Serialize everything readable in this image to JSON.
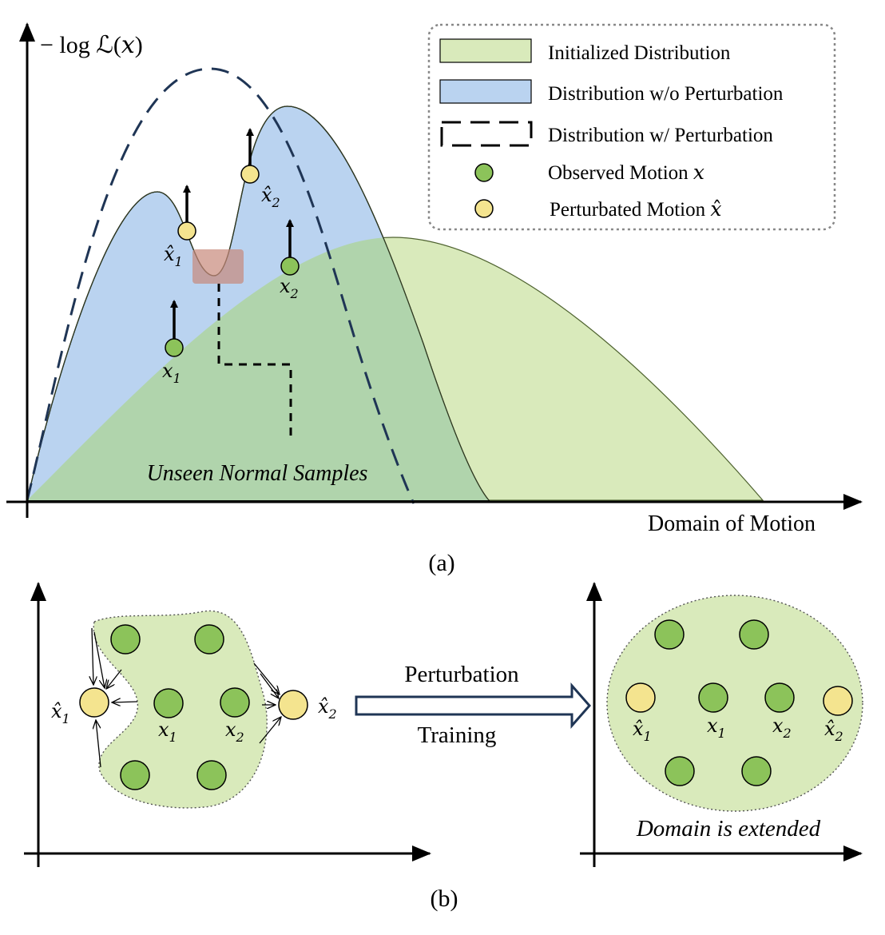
{
  "panel_a": {
    "y_axis_label": "− log ℒ(𝑥)",
    "x_axis_label": "Domain of Motion",
    "caption": "(a)",
    "region_label": "Unseen Normal Samples",
    "points": {
      "x1": "𝑥",
      "x1_sub": "1",
      "x2": "𝑥",
      "x2_sub": "2",
      "xh1": "𝑥̂",
      "xh1_sub": "1",
      "xh2": "𝑥̂",
      "xh2_sub": "2"
    },
    "legend": {
      "items": [
        {
          "label": "Initialized Distribution"
        },
        {
          "label": "Distribution w/o Perturbation"
        },
        {
          "label": "Distribution w/ Perturbation"
        },
        {
          "label": "Observed Motion 𝑥"
        },
        {
          "label": "Perturbated Motion 𝑥̂"
        }
      ]
    }
  },
  "panel_b": {
    "caption": "(b)",
    "arrow_top_label": "Perturbation",
    "arrow_bottom_label": "Training",
    "right_label": "Domain is extended",
    "left_points": {
      "xh1": "𝑥̂",
      "xh1_sub": "1",
      "xh2": "𝑥̂",
      "xh2_sub": "2",
      "x1": "𝑥",
      "x1_sub": "1",
      "x2": "𝑥",
      "x2_sub": "2"
    },
    "right_points": {
      "xh1": "𝑥̂",
      "xh1_sub": "1",
      "x1": "𝑥",
      "x1_sub": "1",
      "x2": "𝑥",
      "x2_sub": "2",
      "xh2": "𝑥̂",
      "xh2_sub": "2"
    }
  },
  "colors": {
    "initialized_fill": "#d9eabb",
    "without_perturbation_fill": "#bad3f0",
    "overlap_fill": "#b0d4ac",
    "dashed_curve": "#1f3555",
    "observed_point": "#8cc35a",
    "perturbated_point": "#f4e48f",
    "highlight": "#c7897a"
  }
}
